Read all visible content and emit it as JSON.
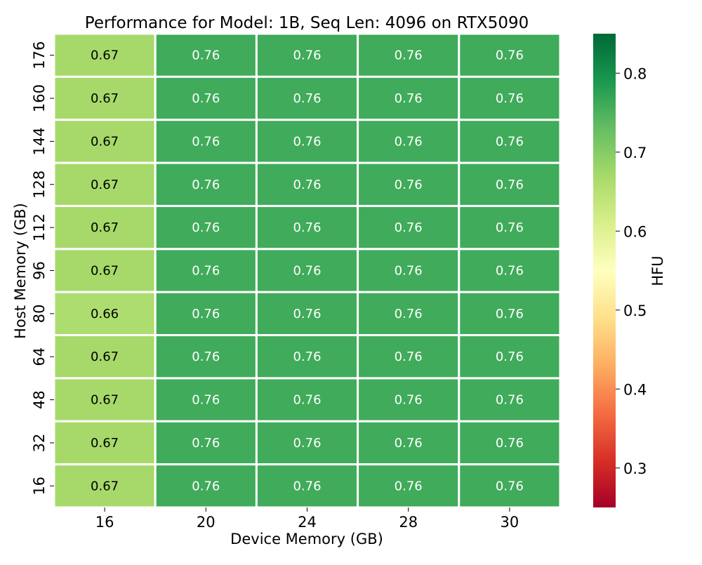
{
  "chart_data": {
    "type": "heatmap",
    "title": "Performance for Model: 1B, Seq Len: 4096 on RTX5090",
    "xlabel": "Device Memory (GB)",
    "ylabel": "Host Memory (GB)",
    "x_categories": [
      "16",
      "20",
      "24",
      "28",
      "30"
    ],
    "y_categories": [
      "176",
      "160",
      "144",
      "128",
      "112",
      "96",
      "80",
      "64",
      "48",
      "32",
      "16"
    ],
    "values": [
      [
        0.67,
        0.76,
        0.76,
        0.76,
        0.76
      ],
      [
        0.67,
        0.76,
        0.76,
        0.76,
        0.76
      ],
      [
        0.67,
        0.76,
        0.76,
        0.76,
        0.76
      ],
      [
        0.67,
        0.76,
        0.76,
        0.76,
        0.76
      ],
      [
        0.67,
        0.76,
        0.76,
        0.76,
        0.76
      ],
      [
        0.67,
        0.76,
        0.76,
        0.76,
        0.76
      ],
      [
        0.66,
        0.76,
        0.76,
        0.76,
        0.76
      ],
      [
        0.67,
        0.76,
        0.76,
        0.76,
        0.76
      ],
      [
        0.67,
        0.76,
        0.76,
        0.76,
        0.76
      ],
      [
        0.67,
        0.76,
        0.76,
        0.76,
        0.76
      ],
      [
        0.67,
        0.76,
        0.76,
        0.76,
        0.76
      ]
    ],
    "value_labels": [
      [
        "0.67",
        "0.76",
        "0.76",
        "0.76",
        "0.76"
      ],
      [
        "0.67",
        "0.76",
        "0.76",
        "0.76",
        "0.76"
      ],
      [
        "0.67",
        "0.76",
        "0.76",
        "0.76",
        "0.76"
      ],
      [
        "0.67",
        "0.76",
        "0.76",
        "0.76",
        "0.76"
      ],
      [
        "0.67",
        "0.76",
        "0.76",
        "0.76",
        "0.76"
      ],
      [
        "0.67",
        "0.76",
        "0.76",
        "0.76",
        "0.76"
      ],
      [
        "0.66",
        "0.76",
        "0.76",
        "0.76",
        "0.76"
      ],
      [
        "0.67",
        "0.76",
        "0.76",
        "0.76",
        "0.76"
      ],
      [
        "0.67",
        "0.76",
        "0.76",
        "0.76",
        "0.76"
      ],
      [
        "0.67",
        "0.76",
        "0.76",
        "0.76",
        "0.76"
      ],
      [
        "0.67",
        "0.76",
        "0.76",
        "0.76",
        "0.76"
      ]
    ],
    "colorbar": {
      "label": "HFU",
      "vmin": 0.25,
      "vmax": 0.85,
      "ticks": [
        0.3,
        0.4,
        0.5,
        0.6,
        0.7,
        0.8
      ],
      "tick_labels": [
        "0.3",
        "0.4",
        "0.5",
        "0.6",
        "0.7",
        "0.8"
      ],
      "colormap": "RdYlGn"
    },
    "colors": {
      "cell_border": "#ffffff",
      "text_on_dark": "#ffffff",
      "text_on_light": "#000000",
      "colormap_stops": [
        "#a50026",
        "#d73027",
        "#f46d43",
        "#fdae61",
        "#fee08b",
        "#ffffbf",
        "#d9ef8b",
        "#a6d96a",
        "#66bd63",
        "#1a9850",
        "#006837"
      ]
    }
  }
}
